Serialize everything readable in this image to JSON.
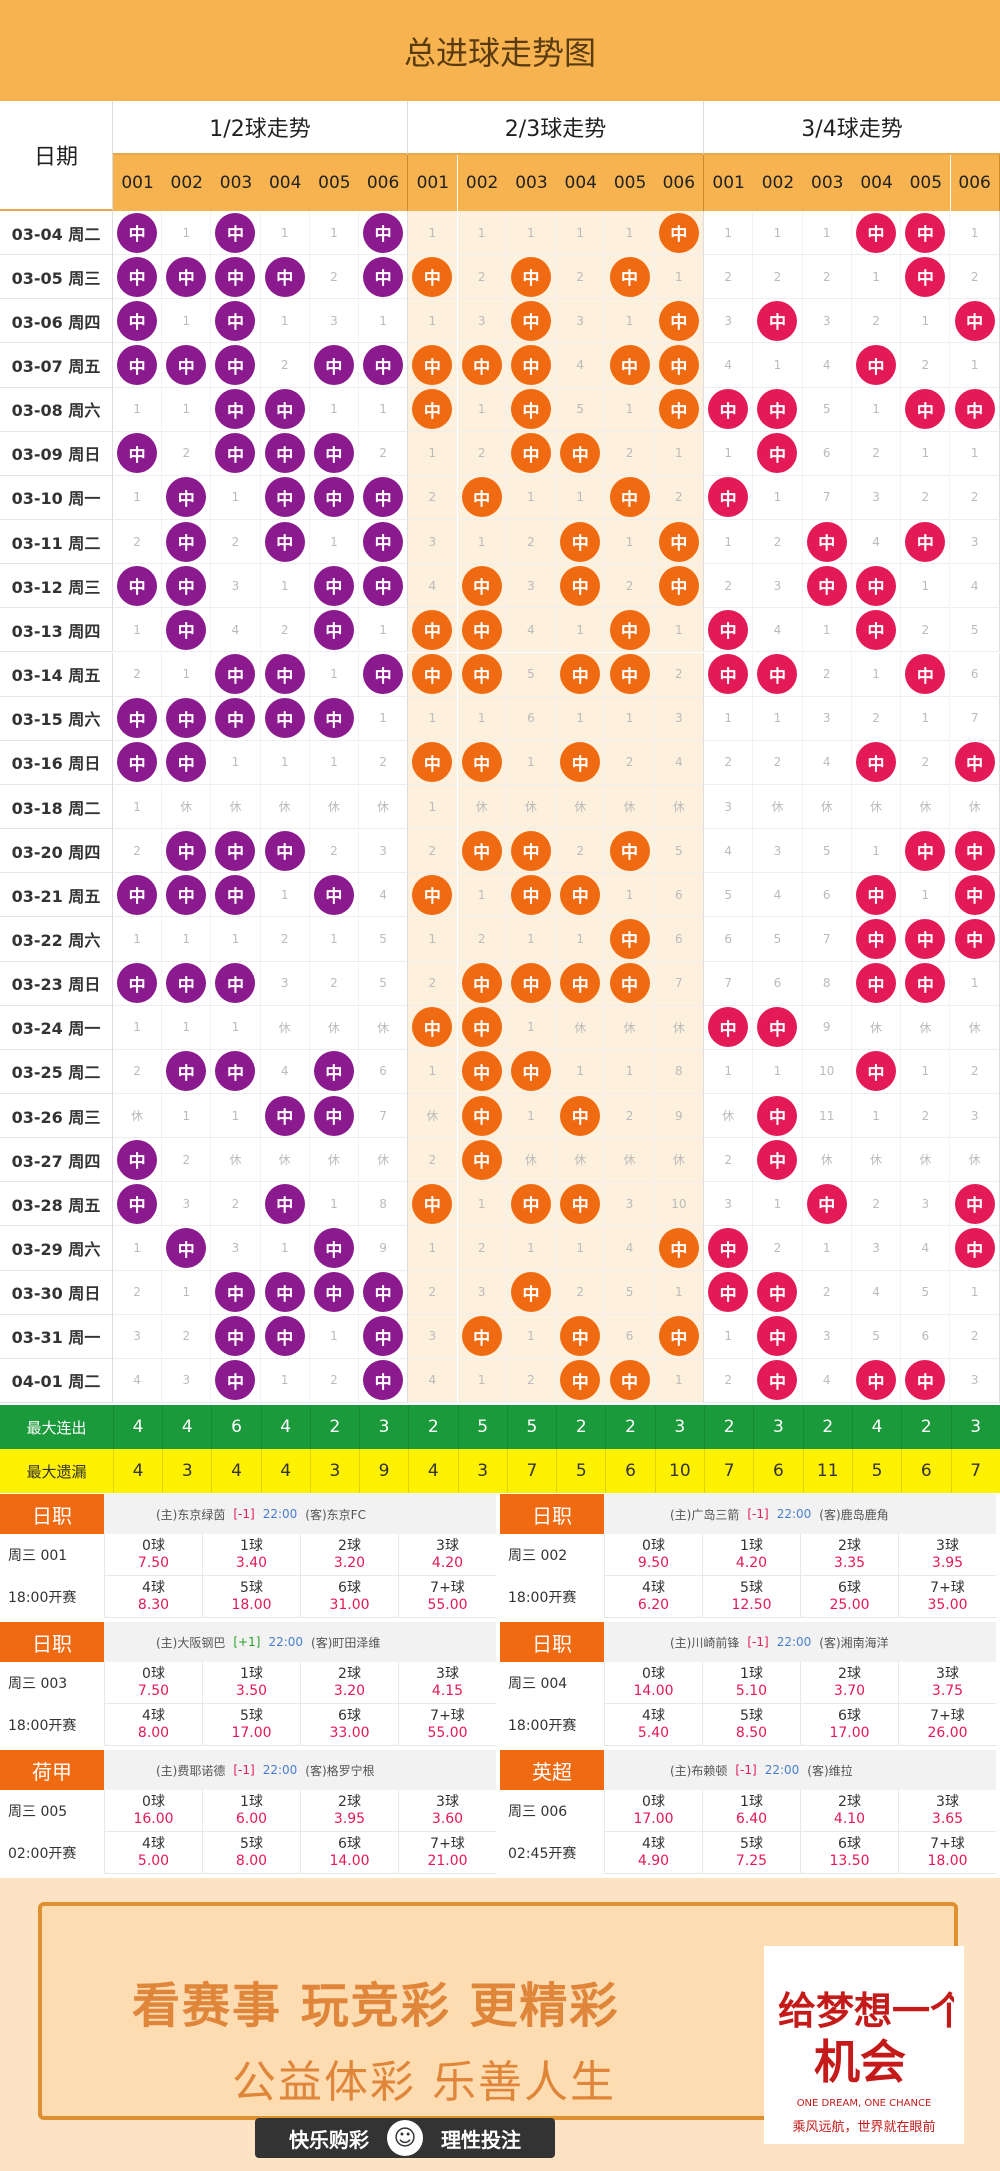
{
  "title": "总进球走势图",
  "header": {
    "date_label": "日期",
    "groups": [
      "1/2球走势",
      "2/3球走势",
      "3/4球走势"
    ],
    "numbers": [
      "001",
      "002",
      "003",
      "004",
      "005",
      "006"
    ],
    "ball_label": "中"
  },
  "colors": {
    "g1": "#8b1a8e",
    "g2": "#f06a12",
    "g3": "#e31a56"
  },
  "rows": [
    {
      "date": "03-04 周二",
      "c": [
        "H",
        1,
        "H",
        1,
        1,
        "H",
        1,
        1,
        1,
        1,
        1,
        "H",
        1,
        1,
        1,
        "H",
        "H",
        1
      ]
    },
    {
      "date": "03-05 周三",
      "c": [
        "H",
        "H",
        "H",
        "H",
        2,
        "H",
        "H",
        2,
        "H",
        2,
        "H",
        1,
        2,
        2,
        2,
        1,
        "H",
        2
      ]
    },
    {
      "date": "03-06 周四",
      "c": [
        "H",
        1,
        "H",
        1,
        3,
        1,
        1,
        3,
        "H",
        3,
        1,
        "H",
        3,
        "H",
        3,
        2,
        1,
        "H"
      ]
    },
    {
      "date": "03-07 周五",
      "c": [
        "H",
        "H",
        "H",
        2,
        "H",
        "H",
        "H",
        "H",
        "H",
        4,
        "H",
        "H",
        4,
        1,
        4,
        "H",
        2,
        1
      ]
    },
    {
      "date": "03-08 周六",
      "c": [
        1,
        1,
        "H",
        "H",
        1,
        1,
        "H",
        1,
        "H",
        5,
        1,
        "H",
        "H",
        "H",
        5,
        1,
        "H",
        "H"
      ]
    },
    {
      "date": "03-09 周日",
      "c": [
        "H",
        2,
        "H",
        "H",
        "H",
        2,
        1,
        2,
        "H",
        "H",
        2,
        1,
        1,
        "H",
        6,
        2,
        1,
        1
      ]
    },
    {
      "date": "03-10 周一",
      "c": [
        1,
        "H",
        1,
        "H",
        "H",
        "H",
        2,
        "H",
        1,
        1,
        "H",
        2,
        "H",
        1,
        7,
        3,
        2,
        2
      ]
    },
    {
      "date": "03-11 周二",
      "c": [
        2,
        "H",
        2,
        "H",
        1,
        "H",
        3,
        1,
        2,
        "H",
        1,
        "H",
        1,
        2,
        "H",
        4,
        "H",
        3
      ]
    },
    {
      "date": "03-12 周三",
      "c": [
        "H",
        "H",
        3,
        1,
        "H",
        "H",
        4,
        "H",
        3,
        "H",
        2,
        "H",
        2,
        3,
        "H",
        "H",
        1,
        4
      ]
    },
    {
      "date": "03-13 周四",
      "c": [
        1,
        "H",
        4,
        2,
        "H",
        1,
        "H",
        "H",
        4,
        1,
        "H",
        1,
        "H",
        4,
        1,
        "H",
        2,
        5
      ]
    },
    {
      "date": "03-14 周五",
      "c": [
        2,
        1,
        "H",
        "H",
        1,
        "H",
        "H",
        "H",
        5,
        "H",
        "H",
        2,
        "H",
        "H",
        2,
        1,
        "H",
        6
      ]
    },
    {
      "date": "03-15 周六",
      "c": [
        "H",
        "H",
        "H",
        "H",
        "H",
        1,
        1,
        1,
        6,
        1,
        1,
        3,
        1,
        1,
        3,
        2,
        1,
        7
      ]
    },
    {
      "date": "03-16 周日",
      "c": [
        "H",
        "H",
        1,
        1,
        1,
        2,
        "H",
        "H",
        1,
        "H",
        2,
        4,
        2,
        2,
        4,
        "H",
        2,
        "H"
      ]
    },
    {
      "date": "03-18 周二",
      "c": [
        1,
        "休",
        "休",
        "休",
        "休",
        "休",
        1,
        "休",
        "休",
        "休",
        "休",
        "休",
        3,
        "休",
        "休",
        "休",
        "休",
        "休"
      ]
    },
    {
      "date": "03-20 周四",
      "c": [
        2,
        "H",
        "H",
        "H",
        2,
        3,
        2,
        "H",
        "H",
        2,
        "H",
        5,
        4,
        3,
        5,
        1,
        "H",
        "H"
      ]
    },
    {
      "date": "03-21 周五",
      "c": [
        "H",
        "H",
        "H",
        1,
        "H",
        4,
        "H",
        1,
        "H",
        "H",
        1,
        6,
        5,
        4,
        6,
        "H",
        1,
        "H"
      ]
    },
    {
      "date": "03-22 周六",
      "c": [
        1,
        1,
        1,
        2,
        1,
        5,
        1,
        2,
        1,
        1,
        "H",
        6,
        6,
        5,
        7,
        "H",
        "H",
        "H"
      ]
    },
    {
      "date": "03-23 周日",
      "c": [
        "H",
        "H",
        "H",
        3,
        2,
        5,
        2,
        "H",
        "H",
        "H",
        "H",
        7,
        7,
        6,
        8,
        "H",
        "H",
        1
      ]
    },
    {
      "date": "03-24 周一",
      "c": [
        1,
        1,
        1,
        "休",
        "休",
        "休",
        "H",
        "H",
        1,
        "休",
        "休",
        "休",
        "H",
        "H",
        9,
        "休",
        "休",
        "休"
      ]
    },
    {
      "date": "03-25 周二",
      "c": [
        2,
        "H",
        "H",
        4,
        "H",
        6,
        1,
        "H",
        "H",
        1,
        1,
        8,
        1,
        1,
        10,
        "H",
        1,
        2
      ]
    },
    {
      "date": "03-26 周三",
      "c": [
        "休",
        1,
        1,
        "H",
        "H",
        7,
        "休",
        "H",
        1,
        "H",
        2,
        9,
        "休",
        "H",
        11,
        1,
        2,
        3
      ]
    },
    {
      "date": "03-27 周四",
      "c": [
        "H",
        2,
        "休",
        "休",
        "休",
        "休",
        2,
        "H",
        "休",
        "休",
        "休",
        "休",
        2,
        "H",
        "休",
        "休",
        "休",
        "休"
      ]
    },
    {
      "date": "03-28 周五",
      "c": [
        "H",
        3,
        2,
        "H",
        1,
        8,
        "H",
        1,
        "H",
        "H",
        3,
        10,
        3,
        1,
        "H",
        2,
        3,
        "H"
      ]
    },
    {
      "date": "03-29 周六",
      "c": [
        1,
        "H",
        3,
        1,
        "H",
        9,
        1,
        2,
        1,
        1,
        4,
        "H",
        "H",
        2,
        1,
        3,
        4,
        "H"
      ]
    },
    {
      "date": "03-30 周日",
      "c": [
        2,
        1,
        "H",
        "H",
        "H",
        "H",
        2,
        3,
        "H",
        2,
        5,
        1,
        "H",
        "H",
        2,
        4,
        5,
        1
      ]
    },
    {
      "date": "03-31 周一",
      "c": [
        3,
        2,
        "H",
        "H",
        1,
        "H",
        3,
        "H",
        1,
        "H",
        6,
        "H",
        1,
        "H",
        3,
        5,
        6,
        2
      ]
    },
    {
      "date": "04-01 周二",
      "c": [
        4,
        3,
        "H",
        1,
        2,
        "H",
        4,
        1,
        2,
        "H",
        "H",
        1,
        2,
        "H",
        4,
        "H",
        "H",
        3
      ]
    }
  ],
  "stats": {
    "max_streak_label": "最大连出",
    "max_streak": [
      4,
      4,
      6,
      4,
      2,
      3,
      2,
      5,
      5,
      2,
      2,
      3,
      2,
      3,
      2,
      4,
      2,
      3
    ],
    "max_miss_label": "最大遗漏",
    "max_miss": [
      4,
      3,
      4,
      4,
      3,
      9,
      4,
      3,
      7,
      5,
      6,
      10,
      7,
      6,
      11,
      5,
      6,
      7
    ]
  },
  "matches": [
    {
      "league": "日职",
      "home": "(主)东京绿茵",
      "handicap": "[-1]",
      "time": "22:00",
      "away": "(客)东京FC",
      "no": "周三 001",
      "kickoff": "18:00开赛",
      "odds": [
        [
          "0球",
          "7.50"
        ],
        [
          "1球",
          "3.40"
        ],
        [
          "2球",
          "3.20"
        ],
        [
          "3球",
          "4.20"
        ],
        [
          "4球",
          "8.30"
        ],
        [
          "5球",
          "18.00"
        ],
        [
          "6球",
          "31.00"
        ],
        [
          "7+球",
          "55.00"
        ]
      ]
    },
    {
      "league": "日职",
      "home": "(主)广岛三箭",
      "handicap": "[-1]",
      "time": "22:00",
      "away": "(客)鹿岛鹿角",
      "no": "周三 002",
      "kickoff": "18:00开赛",
      "odds": [
        [
          "0球",
          "9.50"
        ],
        [
          "1球",
          "4.20"
        ],
        [
          "2球",
          "3.35"
        ],
        [
          "3球",
          "3.95"
        ],
        [
          "4球",
          "6.20"
        ],
        [
          "5球",
          "12.50"
        ],
        [
          "6球",
          "25.00"
        ],
        [
          "7+球",
          "35.00"
        ]
      ]
    },
    {
      "league": "日职",
      "home": "(主)大阪钢巴",
      "handicap": "[+1]",
      "time": "22:00",
      "away": "(客)町田泽维",
      "no": "周三 003",
      "kickoff": "18:00开赛",
      "odds": [
        [
          "0球",
          "7.50"
        ],
        [
          "1球",
          "3.50"
        ],
        [
          "2球",
          "3.20"
        ],
        [
          "3球",
          "4.15"
        ],
        [
          "4球",
          "8.00"
        ],
        [
          "5球",
          "17.00"
        ],
        [
          "6球",
          "33.00"
        ],
        [
          "7+球",
          "55.00"
        ]
      ]
    },
    {
      "league": "日职",
      "home": "(主)川崎前锋",
      "handicap": "[-1]",
      "time": "22:00",
      "away": "(客)湘南海洋",
      "no": "周三 004",
      "kickoff": "18:00开赛",
      "odds": [
        [
          "0球",
          "14.00"
        ],
        [
          "1球",
          "5.10"
        ],
        [
          "2球",
          "3.70"
        ],
        [
          "3球",
          "3.75"
        ],
        [
          "4球",
          "5.40"
        ],
        [
          "5球",
          "8.50"
        ],
        [
          "6球",
          "17.00"
        ],
        [
          "7+球",
          "26.00"
        ]
      ]
    },
    {
      "league": "荷甲",
      "home": "(主)费耶诺德",
      "handicap": "[-1]",
      "time": "22:00",
      "away": "(客)格罗宁根",
      "no": "周三 005",
      "kickoff": "02:00开赛",
      "odds": [
        [
          "0球",
          "16.00"
        ],
        [
          "1球",
          "6.00"
        ],
        [
          "2球",
          "3.95"
        ],
        [
          "3球",
          "3.60"
        ],
        [
          "4球",
          "5.00"
        ],
        [
          "5球",
          "8.00"
        ],
        [
          "6球",
          "14.00"
        ],
        [
          "7+球",
          "21.00"
        ]
      ]
    },
    {
      "league": "英超",
      "home": "(主)布赖顿",
      "handicap": "[-1]",
      "time": "22:00",
      "away": "(客)维拉",
      "no": "周三 006",
      "kickoff": "02:45开赛",
      "odds": [
        [
          "0球",
          "17.00"
        ],
        [
          "1球",
          "6.40"
        ],
        [
          "2球",
          "4.10"
        ],
        [
          "3球",
          "3.65"
        ],
        [
          "4球",
          "4.90"
        ],
        [
          "5球",
          "7.25"
        ],
        [
          "6球",
          "13.50"
        ],
        [
          "7+球",
          "18.00"
        ]
      ]
    }
  ],
  "banner": {
    "slogan1": "看赛事 玩竞彩 更精彩",
    "slogan2": "公益体彩 乐善人生",
    "logo_main": "给梦想一个机会",
    "logo_en": "ONE DREAM, ONE CHANCE",
    "logo_cn": "乘风远航，世界就在眼前",
    "bottom_left": "快乐购彩",
    "bottom_right": "理性投注"
  }
}
